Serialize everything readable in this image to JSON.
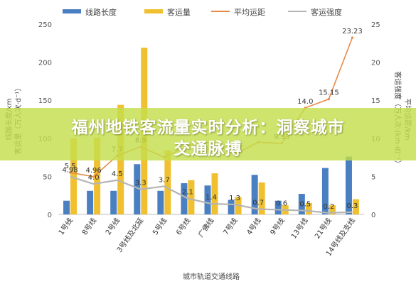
{
  "overlay": {
    "line1": "福州地铁客流量实时分析：洞察城市",
    "line2": "交通脉搏"
  },
  "colors": {
    "length": "#4a7fc1",
    "ridership": "#f0c030",
    "avg_distance": "#e8894a",
    "intensity": "#b5b5b5",
    "intensity_bar": "#7bbf6a",
    "banner": "#c4de4c"
  },
  "chart_data": {
    "type": "bar",
    "xlabel": "城市轨道交通线路",
    "ylabel_left": "线路长度/km\n客运量（万人次·d⁻¹）",
    "ylabel_right": "客运强度（万人次·(km·d)⁻¹）\n平均运距/km",
    "ylim_left": [
      0,
      250
    ],
    "ylim_right": [
      0,
      25
    ],
    "yticks_left": [
      0,
      50,
      100,
      150,
      200,
      250
    ],
    "yticks_right": [
      0,
      5,
      10,
      15,
      20,
      25
    ],
    "grid": false,
    "legend_position": "top",
    "categories": [
      "1号线",
      "8号线",
      "2号线",
      "3号线及北延",
      "5号线",
      "6号线",
      "广佛线",
      "7号线",
      "4号线",
      "9号线",
      "13号线",
      "21号线",
      "14号线及支线"
    ],
    "series": [
      {
        "name": "线路长度",
        "type": "bar",
        "axis": "left",
        "values": [
          18,
          31,
          31,
          66,
          31,
          41,
          38,
          19,
          52,
          18,
          27,
          61,
          76
        ]
      },
      {
        "name": "客运量",
        "type": "bar",
        "axis": "left",
        "values": [
          100,
          101,
          144,
          219,
          84,
          45,
          54,
          23,
          42,
          12,
          15,
          12,
          20
        ]
      },
      {
        "name": "平均运距",
        "type": "line",
        "axis": "right",
        "values": [
          5.5,
          4.96,
          7.7,
          8.9,
          7.5,
          9.0,
          9.5,
          7.87,
          9.5,
          9.33,
          14.0,
          15.15,
          23.23
        ]
      },
      {
        "name": "客运强度",
        "type": "line",
        "axis": "right",
        "values": [
          4.98,
          4.0,
          4.5,
          3.3,
          3.7,
          2.1,
          1.4,
          1.3,
          0.7,
          0.6,
          0.5,
          0.2,
          0.3
        ]
      }
    ],
    "data_labels": {
      "avg_distance": [
        "5.5",
        "4.96",
        "7.7",
        "8.9",
        "",
        "",
        "",
        "7.87",
        "",
        "9.33",
        "14.0",
        "15.15",
        "23.23"
      ],
      "intensity": [
        "4.98",
        "4.0",
        "4.5",
        "3.3",
        "3.7",
        "2.1",
        "1.4",
        "1.3",
        "0.7",
        "0.6",
        "0.5",
        "0.2",
        "0.3"
      ]
    }
  }
}
